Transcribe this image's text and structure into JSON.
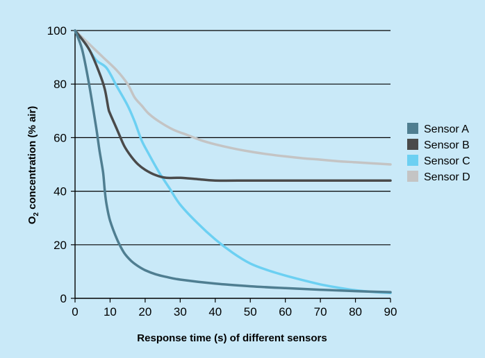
{
  "chart_data": {
    "type": "line",
    "xlabel": "Response time (s) of different sensors",
    "ylabel_main": "O",
    "ylabel_sub": "2",
    "ylabel_rest": " concentration (% air)",
    "xlim": [
      0,
      90
    ],
    "ylim": [
      0,
      100
    ],
    "xticks": [
      0,
      10,
      20,
      30,
      40,
      50,
      60,
      70,
      80,
      90
    ],
    "yticks": [
      0,
      20,
      40,
      60,
      80,
      100
    ],
    "grid": "horizontal",
    "legend_position": "right",
    "background": "#c9e9f8",
    "series": [
      {
        "name": "Sensor A",
        "color": "#4f7e91",
        "points": [
          [
            0,
            100
          ],
          [
            2,
            93
          ],
          [
            4,
            80
          ],
          [
            6,
            64
          ],
          [
            7,
            55
          ],
          [
            8,
            47
          ],
          [
            8.5,
            40
          ],
          [
            9,
            35
          ],
          [
            10,
            29
          ],
          [
            12,
            22
          ],
          [
            14,
            17
          ],
          [
            16,
            14
          ],
          [
            18,
            12
          ],
          [
            20,
            10.5
          ],
          [
            23,
            9
          ],
          [
            26,
            8
          ],
          [
            30,
            7
          ],
          [
            40,
            5.5
          ],
          [
            50,
            4.5
          ],
          [
            60,
            3.8
          ],
          [
            70,
            3.2
          ],
          [
            80,
            2.7
          ],
          [
            90,
            2.3
          ]
        ]
      },
      {
        "name": "Sensor B",
        "color": "#4a4a4a",
        "points": [
          [
            0,
            100
          ],
          [
            4,
            93
          ],
          [
            7,
            84
          ],
          [
            8.5,
            78
          ],
          [
            9.5,
            71
          ],
          [
            10,
            69
          ],
          [
            12,
            63
          ],
          [
            14,
            57
          ],
          [
            16,
            53
          ],
          [
            18,
            50
          ],
          [
            20,
            48
          ],
          [
            23,
            46
          ],
          [
            26,
            45
          ],
          [
            30,
            45
          ],
          [
            35,
            44.5
          ],
          [
            40,
            44
          ],
          [
            50,
            44
          ],
          [
            60,
            44
          ],
          [
            70,
            44
          ],
          [
            80,
            44
          ],
          [
            90,
            44
          ]
        ]
      },
      {
        "name": "Sensor C",
        "color": "#6cd0f2",
        "points": [
          [
            0,
            100
          ],
          [
            3,
            95
          ],
          [
            6,
            89
          ],
          [
            9,
            86
          ],
          [
            12,
            79
          ],
          [
            15,
            72
          ],
          [
            17,
            66
          ],
          [
            19,
            59
          ],
          [
            21,
            54
          ],
          [
            24,
            47
          ],
          [
            27,
            41
          ],
          [
            30,
            35
          ],
          [
            35,
            28
          ],
          [
            40,
            22
          ],
          [
            45,
            17
          ],
          [
            50,
            13
          ],
          [
            55,
            10.5
          ],
          [
            60,
            8.5
          ],
          [
            65,
            6.8
          ],
          [
            70,
            5.2
          ],
          [
            75,
            4
          ],
          [
            80,
            3
          ],
          [
            85,
            2.4
          ],
          [
            90,
            2
          ]
        ]
      },
      {
        "name": "Sensor D",
        "color": "#c4c4c4",
        "points": [
          [
            0,
            100
          ],
          [
            4,
            95
          ],
          [
            8,
            90
          ],
          [
            12,
            85
          ],
          [
            15,
            80
          ],
          [
            17,
            75
          ],
          [
            19,
            72
          ],
          [
            21,
            69
          ],
          [
            24,
            66
          ],
          [
            28,
            63
          ],
          [
            32,
            61
          ],
          [
            36,
            59
          ],
          [
            40,
            57.5
          ],
          [
            45,
            56
          ],
          [
            50,
            54.8
          ],
          [
            55,
            53.8
          ],
          [
            60,
            53
          ],
          [
            65,
            52.3
          ],
          [
            70,
            51.8
          ],
          [
            75,
            51.2
          ],
          [
            80,
            50.8
          ],
          [
            85,
            50.4
          ],
          [
            90,
            50
          ]
        ]
      }
    ]
  }
}
